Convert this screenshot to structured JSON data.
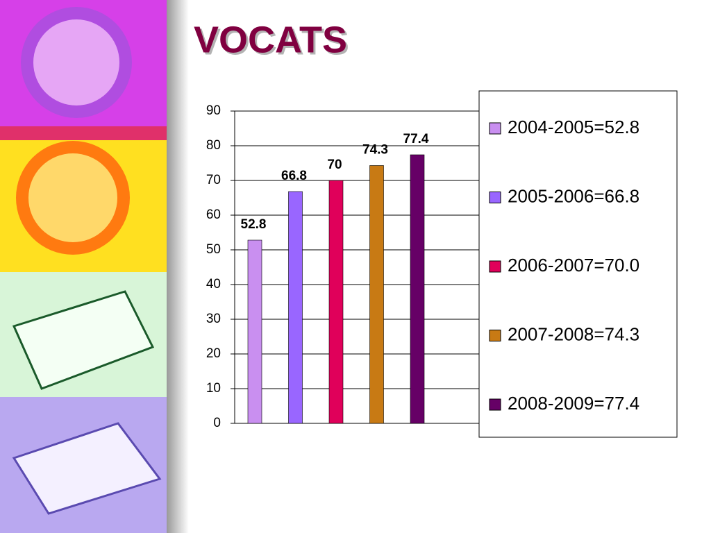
{
  "chart_data": {
    "type": "bar",
    "title": "VOCATS",
    "series": [
      {
        "name": "2004-2005=52.8",
        "color": "#c98ff0",
        "values": [
          52.8
        ]
      },
      {
        "name": "2005-2006=66.8",
        "color": "#9966ff",
        "values": [
          66.8
        ]
      },
      {
        "name": "2006-2007=70.0",
        "color": "#e0005a",
        "values": [
          70
        ]
      },
      {
        "name": "2007-2008=74.3",
        "color": "#c87a14",
        "values": [
          74.3
        ]
      },
      {
        "name": "2008-2009=77.4",
        "color": "#660066",
        "values": [
          77.4
        ]
      }
    ],
    "ylim": [
      0,
      90
    ],
    "yticks": [
      0,
      10,
      20,
      30,
      40,
      50,
      60,
      70,
      80,
      90
    ],
    "grid": true,
    "legend": "right"
  }
}
